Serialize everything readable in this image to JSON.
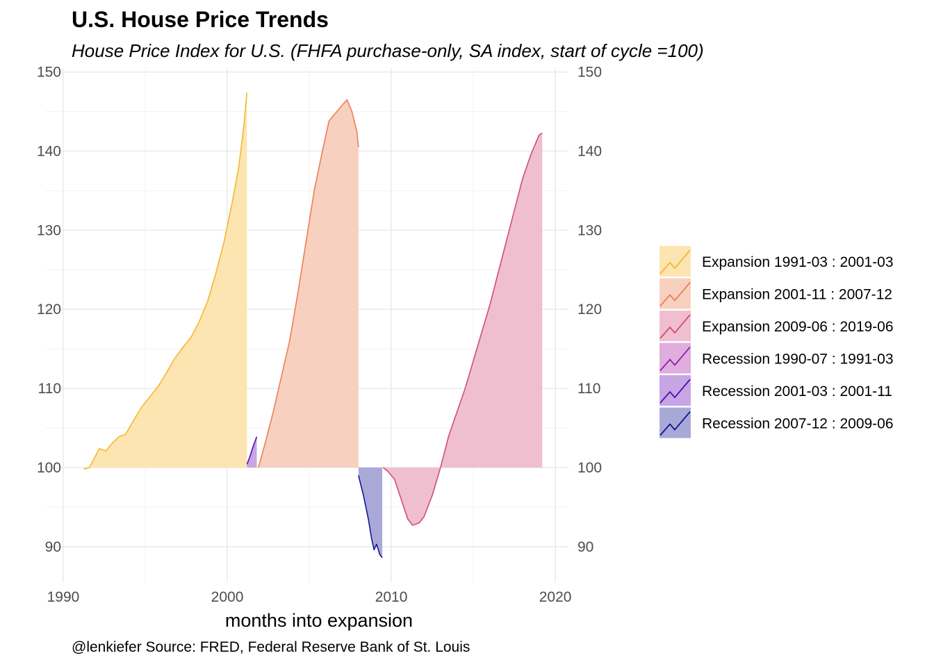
{
  "title": "U.S. House Price Trends",
  "subtitle": "House Price Index for U.S. (FHFA purchase-only, SA index, start of cycle =100)",
  "caption": "@lenkiefer Source: FRED, Federal Reserve Bank of St. Louis",
  "chart_data": {
    "type": "area",
    "xlabel": "months into expansion",
    "ylabel": "",
    "xlim": [
      1988.9,
      2020.8
    ],
    "ylim": [
      85.5,
      150.5
    ],
    "x_ticks": [
      1990,
      2000,
      2010,
      2020
    ],
    "y_ticks": [
      90,
      100,
      110,
      120,
      130,
      140,
      150
    ],
    "baseline": 100,
    "grid": true,
    "y_axis_duplicated_right": true,
    "legend_position": "right",
    "series": [
      {
        "name": "Expansion 1991-03 : 2001-03",
        "color": "#f5b731",
        "fill": "#fde5b1",
        "points": [
          [
            1991.25,
            99.8
          ],
          [
            1991.6,
            100.0
          ],
          [
            1991.9,
            101.2
          ],
          [
            1992.2,
            102.4
          ],
          [
            1992.6,
            102.1
          ],
          [
            1993.0,
            103.1
          ],
          [
            1993.4,
            103.9
          ],
          [
            1993.8,
            104.2
          ],
          [
            1994.3,
            106.0
          ],
          [
            1994.8,
            107.7
          ],
          [
            1995.3,
            109.0
          ],
          [
            1995.8,
            110.3
          ],
          [
            1996.3,
            112.0
          ],
          [
            1996.8,
            113.8
          ],
          [
            1997.3,
            115.2
          ],
          [
            1997.8,
            116.5
          ],
          [
            1998.3,
            118.5
          ],
          [
            1998.8,
            121.0
          ],
          [
            1999.3,
            124.5
          ],
          [
            1999.8,
            128.5
          ],
          [
            2000.3,
            133.5
          ],
          [
            2000.7,
            138.0
          ],
          [
            2001.0,
            143.0
          ],
          [
            2001.2,
            147.4
          ]
        ]
      },
      {
        "name": "Expansion 2001-11 : 2007-12",
        "color": "#ee7e55",
        "fill": "#f8d0bf",
        "points": [
          [
            2001.9,
            100.0
          ],
          [
            2002.3,
            103.0
          ],
          [
            2002.8,
            107.0
          ],
          [
            2003.3,
            111.5
          ],
          [
            2003.8,
            116.0
          ],
          [
            2004.3,
            122.0
          ],
          [
            2004.8,
            128.5
          ],
          [
            2005.3,
            135.0
          ],
          [
            2005.8,
            140.0
          ],
          [
            2006.2,
            143.8
          ],
          [
            2006.6,
            144.8
          ],
          [
            2007.0,
            145.8
          ],
          [
            2007.3,
            146.5
          ],
          [
            2007.6,
            145.0
          ],
          [
            2007.9,
            142.5
          ],
          [
            2008.0,
            140.5
          ]
        ]
      },
      {
        "name": "Expansion 2009-06 : 2019-06",
        "color": "#d14d72",
        "fill": "#efbfcf",
        "points": [
          [
            2009.5,
            100.0
          ],
          [
            2009.8,
            99.5
          ],
          [
            2010.2,
            98.5
          ],
          [
            2010.6,
            96.0
          ],
          [
            2011.0,
            93.5
          ],
          [
            2011.3,
            92.7
          ],
          [
            2011.7,
            93.0
          ],
          [
            2012.0,
            93.8
          ],
          [
            2012.5,
            96.5
          ],
          [
            2013.0,
            100.0
          ],
          [
            2013.5,
            104.0
          ],
          [
            2014.0,
            107.0
          ],
          [
            2014.5,
            110.0
          ],
          [
            2015.0,
            113.5
          ],
          [
            2015.5,
            117.0
          ],
          [
            2016.0,
            120.5
          ],
          [
            2016.5,
            124.5
          ],
          [
            2017.0,
            128.5
          ],
          [
            2017.5,
            132.5
          ],
          [
            2018.0,
            136.5
          ],
          [
            2018.5,
            139.5
          ],
          [
            2019.0,
            142.0
          ],
          [
            2019.2,
            142.3
          ]
        ]
      },
      {
        "name": "Recession 1990-07 : 1991-03",
        "color": "#9a1ab1",
        "fill": "#dfaedf",
        "points": []
      },
      {
        "name": "Recession 2001-03 : 2001-11",
        "color": "#4c0fb8",
        "fill": "#c7a6e3",
        "points": [
          [
            2001.2,
            100.4
          ],
          [
            2001.4,
            101.5
          ],
          [
            2001.6,
            102.8
          ],
          [
            2001.8,
            103.9
          ]
        ]
      },
      {
        "name": "Recession 2007-12 : 2009-06",
        "color": "#131499",
        "fill": "#a9a9d8",
        "points": [
          [
            2008.0,
            99.0
          ],
          [
            2008.3,
            96.5
          ],
          [
            2008.6,
            93.5
          ],
          [
            2008.8,
            91.0
          ],
          [
            2008.95,
            89.6
          ],
          [
            2009.1,
            90.3
          ],
          [
            2009.3,
            89.0
          ],
          [
            2009.45,
            88.6
          ]
        ]
      }
    ]
  }
}
